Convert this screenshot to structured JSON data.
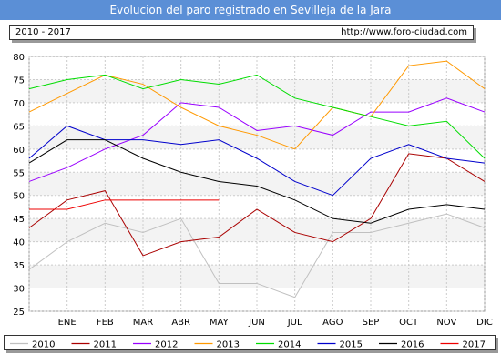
{
  "header": {
    "title": "Evolucion del paro registrado en Sevilleja de la Jara",
    "period": "2010 - 2017",
    "url": "http://www.foro-ciudad.com"
  },
  "chart_data": {
    "type": "line",
    "title": "Evolucion del paro registrado en Sevilleja de la Jara",
    "categories": [
      "",
      "ENE",
      "FEB",
      "MAR",
      "ABR",
      "MAY",
      "JUN",
      "JUL",
      "AGO",
      "SEP",
      "OCT",
      "NOV",
      "DIC"
    ],
    "ylim": [
      25,
      80
    ],
    "yticks": [
      25,
      30,
      35,
      40,
      45,
      50,
      55,
      60,
      65,
      70,
      75,
      80
    ],
    "grid": true,
    "legend_position": "bottom",
    "series": [
      {
        "name": "2010",
        "color": "#c0c0c0",
        "values": [
          34,
          40,
          44,
          42,
          45,
          31,
          31,
          28,
          42,
          42,
          44,
          46,
          43
        ]
      },
      {
        "name": "2011",
        "color": "#aa0000",
        "values": [
          43,
          49,
          51,
          37,
          40,
          41,
          47,
          42,
          40,
          45,
          59,
          58,
          53
        ]
      },
      {
        "name": "2012",
        "color": "#9900ff",
        "values": [
          53,
          56,
          60,
          63,
          70,
          69,
          64,
          65,
          63,
          68,
          68,
          71,
          68
        ]
      },
      {
        "name": "2013",
        "color": "#ff9900",
        "values": [
          68,
          72,
          76,
          74,
          69,
          65,
          63,
          60,
          69,
          67,
          78,
          79,
          73
        ]
      },
      {
        "name": "2014",
        "color": "#00dd00",
        "values": [
          73,
          75,
          76,
          73,
          75,
          74,
          76,
          71,
          69,
          67,
          65,
          66,
          58
        ]
      },
      {
        "name": "2015",
        "color": "#0000cc",
        "values": [
          58,
          65,
          62,
          62,
          61,
          62,
          58,
          53,
          50,
          58,
          61,
          58,
          57
        ]
      },
      {
        "name": "2016",
        "color": "#000000",
        "values": [
          57,
          62,
          62,
          58,
          55,
          53,
          52,
          49,
          45,
          44,
          47,
          48,
          47
        ]
      },
      {
        "name": "2017",
        "color": "#ee0000",
        "values": [
          47,
          47,
          49,
          49,
          49,
          49,
          null,
          null,
          null,
          null,
          null,
          null,
          null
        ]
      }
    ]
  }
}
